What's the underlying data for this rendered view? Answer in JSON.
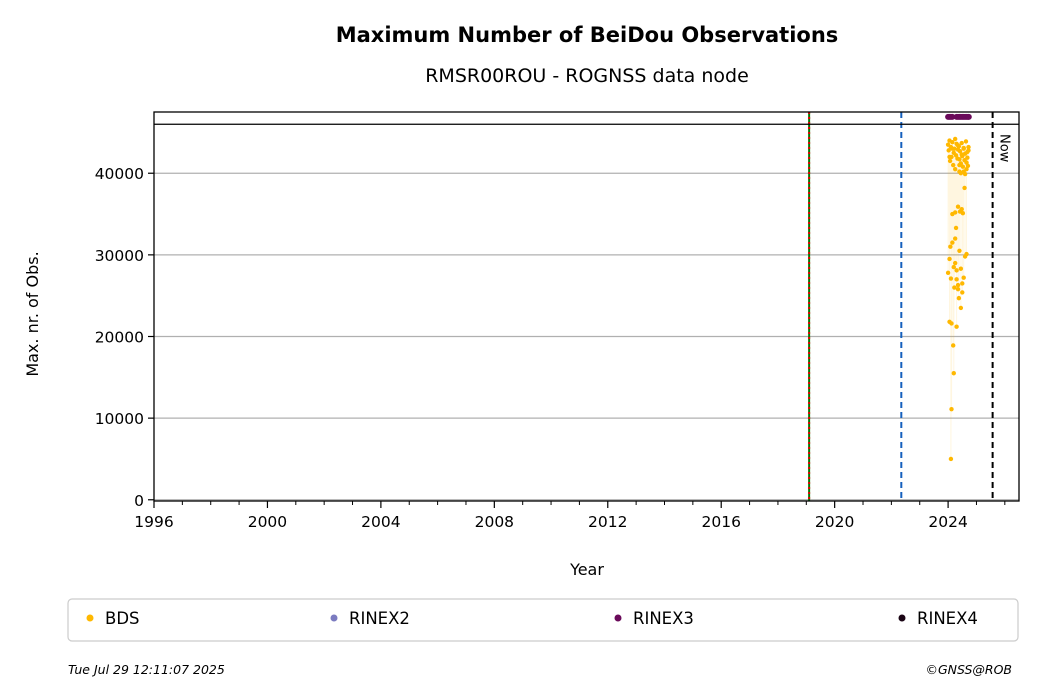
{
  "chart_data": {
    "type": "scatter",
    "title": "Maximum Number of BeiDou Observations",
    "subtitle": "RMSR00ROU - ROGNSS data node",
    "xlabel": "Year",
    "ylabel": "Max. nr. of Obs.",
    "xlim": [
      1996,
      2026.5
    ],
    "ylim": [
      0,
      48000
    ],
    "x_ticks": [
      1996,
      2000,
      2004,
      2008,
      2012,
      2016,
      2020,
      2024
    ],
    "y_ticks": [
      0,
      10000,
      20000,
      30000,
      40000
    ],
    "grid": "horizontal",
    "legend_position": "bottom",
    "upper_band_min": 46000,
    "series": [
      {
        "name": "BDS",
        "color": "#ffb800",
        "x": [
          2024.0,
          2024.02,
          2024.05,
          2024.07,
          2024.1,
          2024.12,
          2024.15,
          2024.18,
          2024.2,
          2024.22,
          2024.25,
          2024.28,
          2024.3,
          2024.33,
          2024.35,
          2024.38,
          2024.4,
          2024.42,
          2024.45,
          2024.48,
          2024.5,
          2024.52,
          2024.55,
          2024.58,
          2024.6,
          2024.63,
          2024.65,
          2024.68,
          2024.7,
          2024.72,
          2024.0,
          2024.05,
          2024.1,
          2024.15,
          2024.2,
          2024.25,
          2024.3,
          2024.35,
          2024.4,
          2024.45,
          2024.5,
          2024.55,
          2024.6,
          2024.65,
          2024.05,
          2024.08,
          2024.12,
          2024.15,
          2024.18,
          2024.22,
          2024.25,
          2024.28,
          2024.3,
          2024.35,
          2024.38,
          2024.42,
          2024.45,
          2024.48,
          2024.5,
          2024.52,
          2024.58,
          2024.1,
          2024.12,
          2024.2,
          2024.25,
          2024.3,
          2024.35,
          2024.4,
          2024.45,
          2024.55,
          2024.6,
          2024.65,
          2024.05,
          2024.15,
          2024.25,
          2024.35,
          2024.4,
          2024.48,
          2024.55,
          2024.68,
          2024.72
        ],
        "y": [
          43500,
          42800,
          44000,
          41500,
          43200,
          42000,
          43800,
          41000,
          42500,
          43000,
          40500,
          42200,
          43600,
          41800,
          42900,
          43300,
          40200,
          42700,
          41200,
          43700,
          42100,
          40800,
          43100,
          41600,
          42400,
          43900,
          41300,
          42600,
          40900,
          43200,
          27800,
          29500,
          27100,
          31500,
          28500,
          32000,
          28100,
          26300,
          30500,
          28300,
          25400,
          27200,
          29800,
          30100,
          21800,
          31000,
          21600,
          35000,
          18900,
          26000,
          35200,
          33300,
          21200,
          35900,
          24700,
          35300,
          23500,
          35600,
          26500,
          35100,
          38200,
          5000,
          11100,
          15500,
          29000,
          27000,
          25800,
          41000,
          40000,
          40200,
          39900,
          40500,
          42000,
          43000,
          44200,
          43400,
          41700,
          42300,
          43000,
          41900,
          42800
        ]
      },
      {
        "name": "RINEX2",
        "color": "#7b7bc0",
        "x": [],
        "y": []
      },
      {
        "name": "RINEX3",
        "color": "#6a0a5a",
        "x": [
          2024.0,
          2024.05,
          2024.1,
          2024.15,
          2024.3,
          2024.35,
          2024.4,
          2024.45,
          2024.5,
          2024.55,
          2024.6,
          2024.65,
          2024.7,
          2024.73
        ],
        "y": [
          46900,
          46900,
          46900,
          46900,
          46900,
          46900,
          46900,
          46900,
          46900,
          46900,
          46900,
          46900,
          46900,
          46900
        ]
      },
      {
        "name": "RINEX4",
        "color": "#1a0515",
        "x": [],
        "y": []
      }
    ],
    "vertical_lines": [
      {
        "x": 2019.1,
        "color": "#007a00",
        "style": "solid"
      },
      {
        "x": 2019.1,
        "color": "#e00000",
        "style": "dotted"
      },
      {
        "x": 2022.35,
        "color": "#1560bd",
        "style": "dashed"
      },
      {
        "x": 2025.57,
        "color": "#000000",
        "style": "dashed",
        "label": "Now"
      }
    ]
  },
  "footer": {
    "timestamp": "Tue Jul 29 12:11:07 2025",
    "copyright": "©GNSS@ROB"
  }
}
